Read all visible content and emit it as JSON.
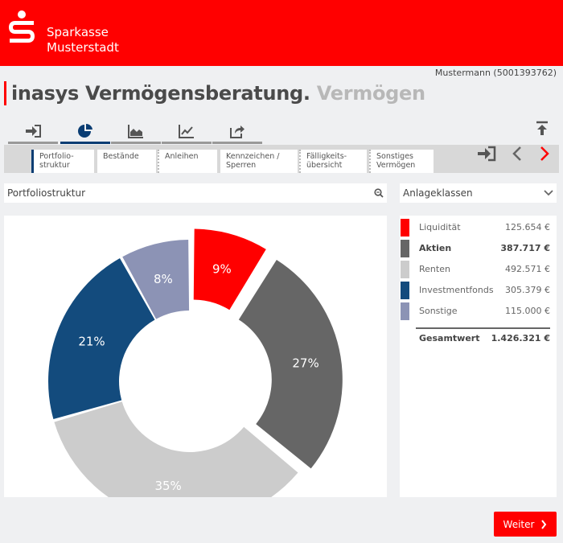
{
  "header": {
    "brand_line1": "Sparkasse",
    "brand_line2": "Musterstadt",
    "bg_color": "#ff0000"
  },
  "user_label": "Mustermann (5001393762)",
  "title": {
    "main": "inasys Vermögensberatung.",
    "sub": "Vermögen"
  },
  "icon_tabs": [
    {
      "icon": "login-arrow-icon",
      "active": false
    },
    {
      "icon": "pie-chart-icon",
      "active": true
    },
    {
      "icon": "area-chart-icon",
      "active": false
    },
    {
      "icon": "line-chart-icon",
      "active": false
    },
    {
      "icon": "share-icon",
      "active": false
    }
  ],
  "sub_tabs": [
    {
      "line1": "Portfolio-",
      "line2": "struktur",
      "active": true
    },
    {
      "line1": "Bestände",
      "line2": "",
      "active": false
    },
    {
      "line1": "Anleihen",
      "line2": "",
      "active": false
    },
    {
      "line1": "Kennzeichen /",
      "line2": "Sperren",
      "active": false
    },
    {
      "line1": "Fälligkeits-",
      "line2": "übersicht",
      "active": false
    },
    {
      "line1": "Sonstiges",
      "line2": "Vermögen",
      "active": false
    }
  ],
  "chart_panel": {
    "heading": "Portfoliostruktur"
  },
  "legend_panel": {
    "dropdown_value": "Anlageklassen"
  },
  "chart_data": {
    "type": "pie",
    "donut": true,
    "categories": [
      "Liquidität",
      "Aktien",
      "Renten",
      "Investmentfonds",
      "Sonstige"
    ],
    "values": [
      125654,
      387717,
      492571,
      305379,
      115000
    ],
    "labels": [
      "9%",
      "27%",
      "35%",
      "21%",
      "8%"
    ],
    "formatted_values": [
      "125.654 €",
      "387.717 €",
      "492.571 €",
      "305.379 €",
      "115.000 €"
    ],
    "colors": [
      "#ff0000",
      "#666666",
      "#cccccc",
      "#134b7d",
      "#8c93b5"
    ],
    "bold_category": "Aktien",
    "exploded": [
      "Liquidität",
      "Aktien"
    ]
  },
  "total": {
    "label": "Gesamtwert",
    "value": "1.426.321 €"
  },
  "weiter_button": {
    "label": "Weiter"
  }
}
